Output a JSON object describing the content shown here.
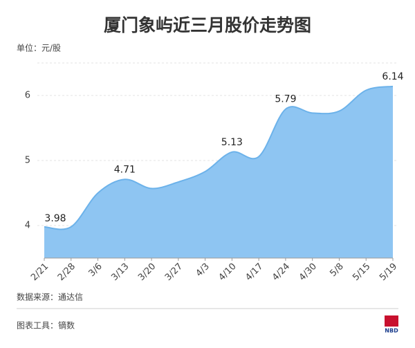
{
  "chart_data": {
    "type": "area",
    "title": "厦门象屿近三月股价走势图",
    "unit_label": "单位：元/股",
    "categories": [
      "2/21",
      "2/28",
      "3/6",
      "3/13",
      "3/20",
      "3/27",
      "4/3",
      "4/10",
      "4/17",
      "4/24",
      "4/30",
      "5/8",
      "5/15",
      "5/19"
    ],
    "values": [
      3.98,
      3.98,
      4.5,
      4.71,
      4.57,
      4.67,
      4.83,
      5.13,
      5.06,
      5.79,
      5.73,
      5.76,
      6.08,
      6.14
    ],
    "value_labels": [
      "3.98",
      null,
      null,
      "4.71",
      null,
      null,
      null,
      "5.13",
      null,
      "5.79",
      null,
      null,
      null,
      "6.14"
    ],
    "color": "#8ec5f2",
    "line_color": "#6cb2ea",
    "ylim": [
      3.5,
      6.5
    ],
    "yticks": [
      4,
      5,
      6
    ],
    "grid": true,
    "source": "数据来源：通达信",
    "tool": "图表工具：镝数",
    "logo": "NBD"
  }
}
